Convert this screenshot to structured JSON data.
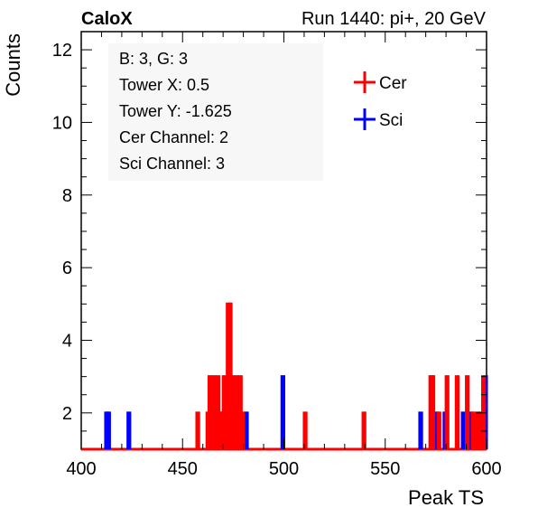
{
  "header": {
    "left_title": "CaloX",
    "right_title": "Run 1440: pi+, 20 GeV"
  },
  "info_box": {
    "lines": [
      "B: 3, G: 3",
      "Tower X: 0.5",
      "Tower Y: -1.625",
      "Cer Channel: 2",
      "Sci Channel: 3"
    ]
  },
  "chart_data": {
    "type": "histogram",
    "xlabel": "Peak TS",
    "ylabel": "Counts",
    "xlim": [
      400,
      600
    ],
    "ylim": [
      1,
      12.5
    ],
    "xticks": [
      400,
      450,
      500,
      550,
      600
    ],
    "yticks": [
      2,
      4,
      6,
      8,
      10,
      12
    ],
    "baseline": 1,
    "legend": {
      "position": "top-right"
    },
    "series": [
      {
        "name": "Cer",
        "color": "#ff0000",
        "bins": [
          {
            "x": 457,
            "y": 2
          },
          {
            "x": 462,
            "y": 2
          },
          {
            "x": 463,
            "y": 3
          },
          {
            "x": 464,
            "y": 2
          },
          {
            "x": 465,
            "y": 3
          },
          {
            "x": 466,
            "y": 2
          },
          {
            "x": 467,
            "y": 3
          },
          {
            "x": 468,
            "y": 2
          },
          {
            "x": 469,
            "y": 2
          },
          {
            "x": 470,
            "y": 3
          },
          {
            "x": 471,
            "y": 2
          },
          {
            "x": 472,
            "y": 5
          },
          {
            "x": 473,
            "y": 5
          },
          {
            "x": 474,
            "y": 3
          },
          {
            "x": 475,
            "y": 2
          },
          {
            "x": 476,
            "y": 3
          },
          {
            "x": 477,
            "y": 2
          },
          {
            "x": 478,
            "y": 3
          },
          {
            "x": 479,
            "y": 2
          },
          {
            "x": 510,
            "y": 2
          },
          {
            "x": 539,
            "y": 2
          },
          {
            "x": 572,
            "y": 3
          },
          {
            "x": 573,
            "y": 3
          },
          {
            "x": 576,
            "y": 2
          },
          {
            "x": 580,
            "y": 3
          },
          {
            "x": 585,
            "y": 3
          },
          {
            "x": 590,
            "y": 3
          },
          {
            "x": 593,
            "y": 2
          },
          {
            "x": 595,
            "y": 2
          },
          {
            "x": 597,
            "y": 2
          },
          {
            "x": 598,
            "y": 3
          }
        ]
      },
      {
        "name": "Sci",
        "color": "#0000ff",
        "bins": [
          {
            "x": 412,
            "y": 2
          },
          {
            "x": 413,
            "y": 2
          },
          {
            "x": 423,
            "y": 2
          },
          {
            "x": 470,
            "y": 2
          },
          {
            "x": 477,
            "y": 2
          },
          {
            "x": 481,
            "y": 2
          },
          {
            "x": 499,
            "y": 3
          },
          {
            "x": 567,
            "y": 2
          },
          {
            "x": 575,
            "y": 2
          },
          {
            "x": 579,
            "y": 2
          },
          {
            "x": 588,
            "y": 2
          },
          {
            "x": 592,
            "y": 2
          },
          {
            "x": 596,
            "y": 2
          },
          {
            "x": 599,
            "y": 3
          }
        ]
      }
    ]
  }
}
